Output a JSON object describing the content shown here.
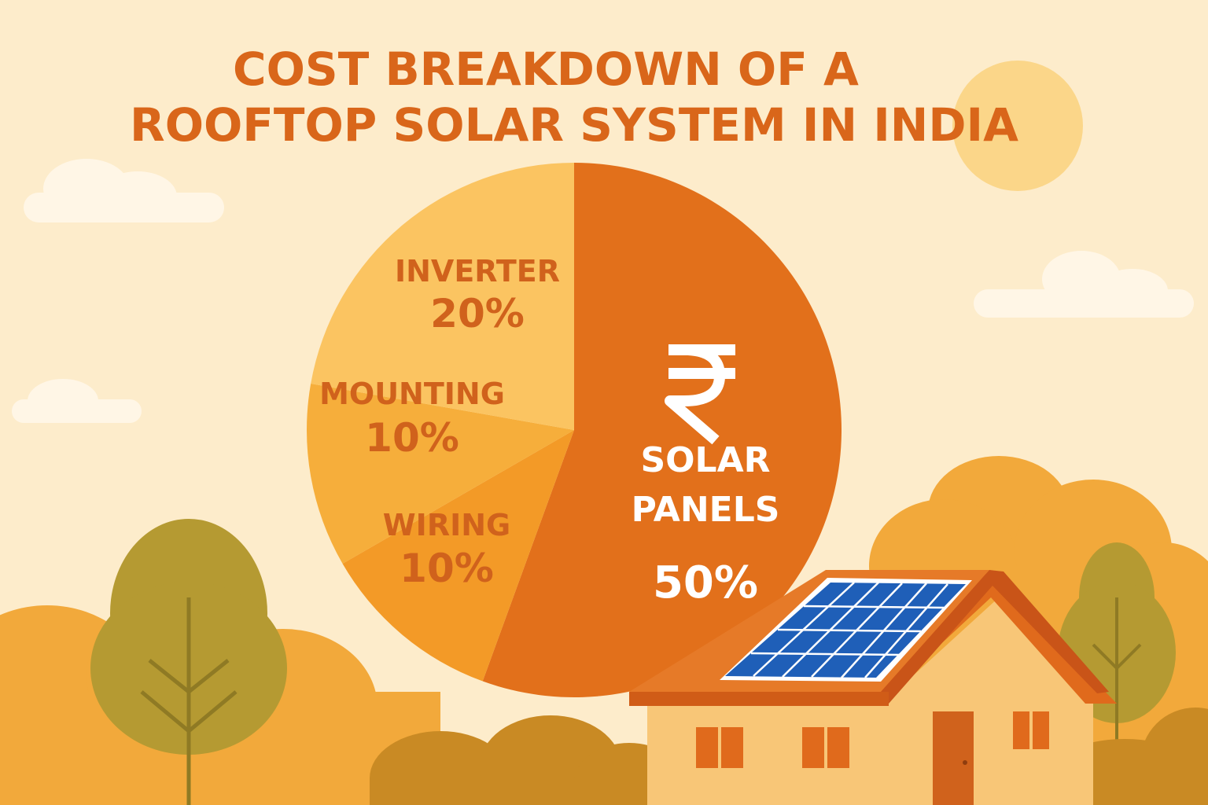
{
  "chart_data": {
    "type": "pie",
    "title_lines": [
      "COST BREAKDOWN OF A",
      "ROOFTOP SOLAR SYSTEM IN INDIA"
    ],
    "slices": [
      {
        "label_lines": [
          "SOLAR",
          "PANELS"
        ],
        "value": 50,
        "value_label": "50%",
        "color": "#e2701b",
        "text_style": "light",
        "icon": "rupee-icon"
      },
      {
        "label_lines": [
          "WIRING"
        ],
        "value": 10,
        "value_label": "10%",
        "color": "#f39a27",
        "text_style": "dark"
      },
      {
        "label_lines": [
          "MOUNTING"
        ],
        "value": 10,
        "value_label": "10%",
        "color": "#f6ae3b",
        "text_style": "dark"
      },
      {
        "label_lines": [
          "INVERTER"
        ],
        "value": 20,
        "value_label": "20%",
        "color": "#fbc461",
        "text_style": "dark"
      }
    ],
    "start_angle_deg": 0,
    "direction": "clockwise"
  },
  "icons": {
    "currency": "rupee-icon",
    "scenery": [
      "sun-icon",
      "cloud-icon",
      "tree-icon",
      "house-icon",
      "solar-panel-icon"
    ]
  },
  "colors": {
    "background": "#fdeccb",
    "title": "#d9661a",
    "sun": "#fbd689",
    "cloud": "#fff6e6",
    "tree_green": "#b59a32",
    "bush": "#f2a93b",
    "house_wall": "#f8c677",
    "roof": "#e06a1c",
    "panel_blue": "#1f5fb8"
  }
}
